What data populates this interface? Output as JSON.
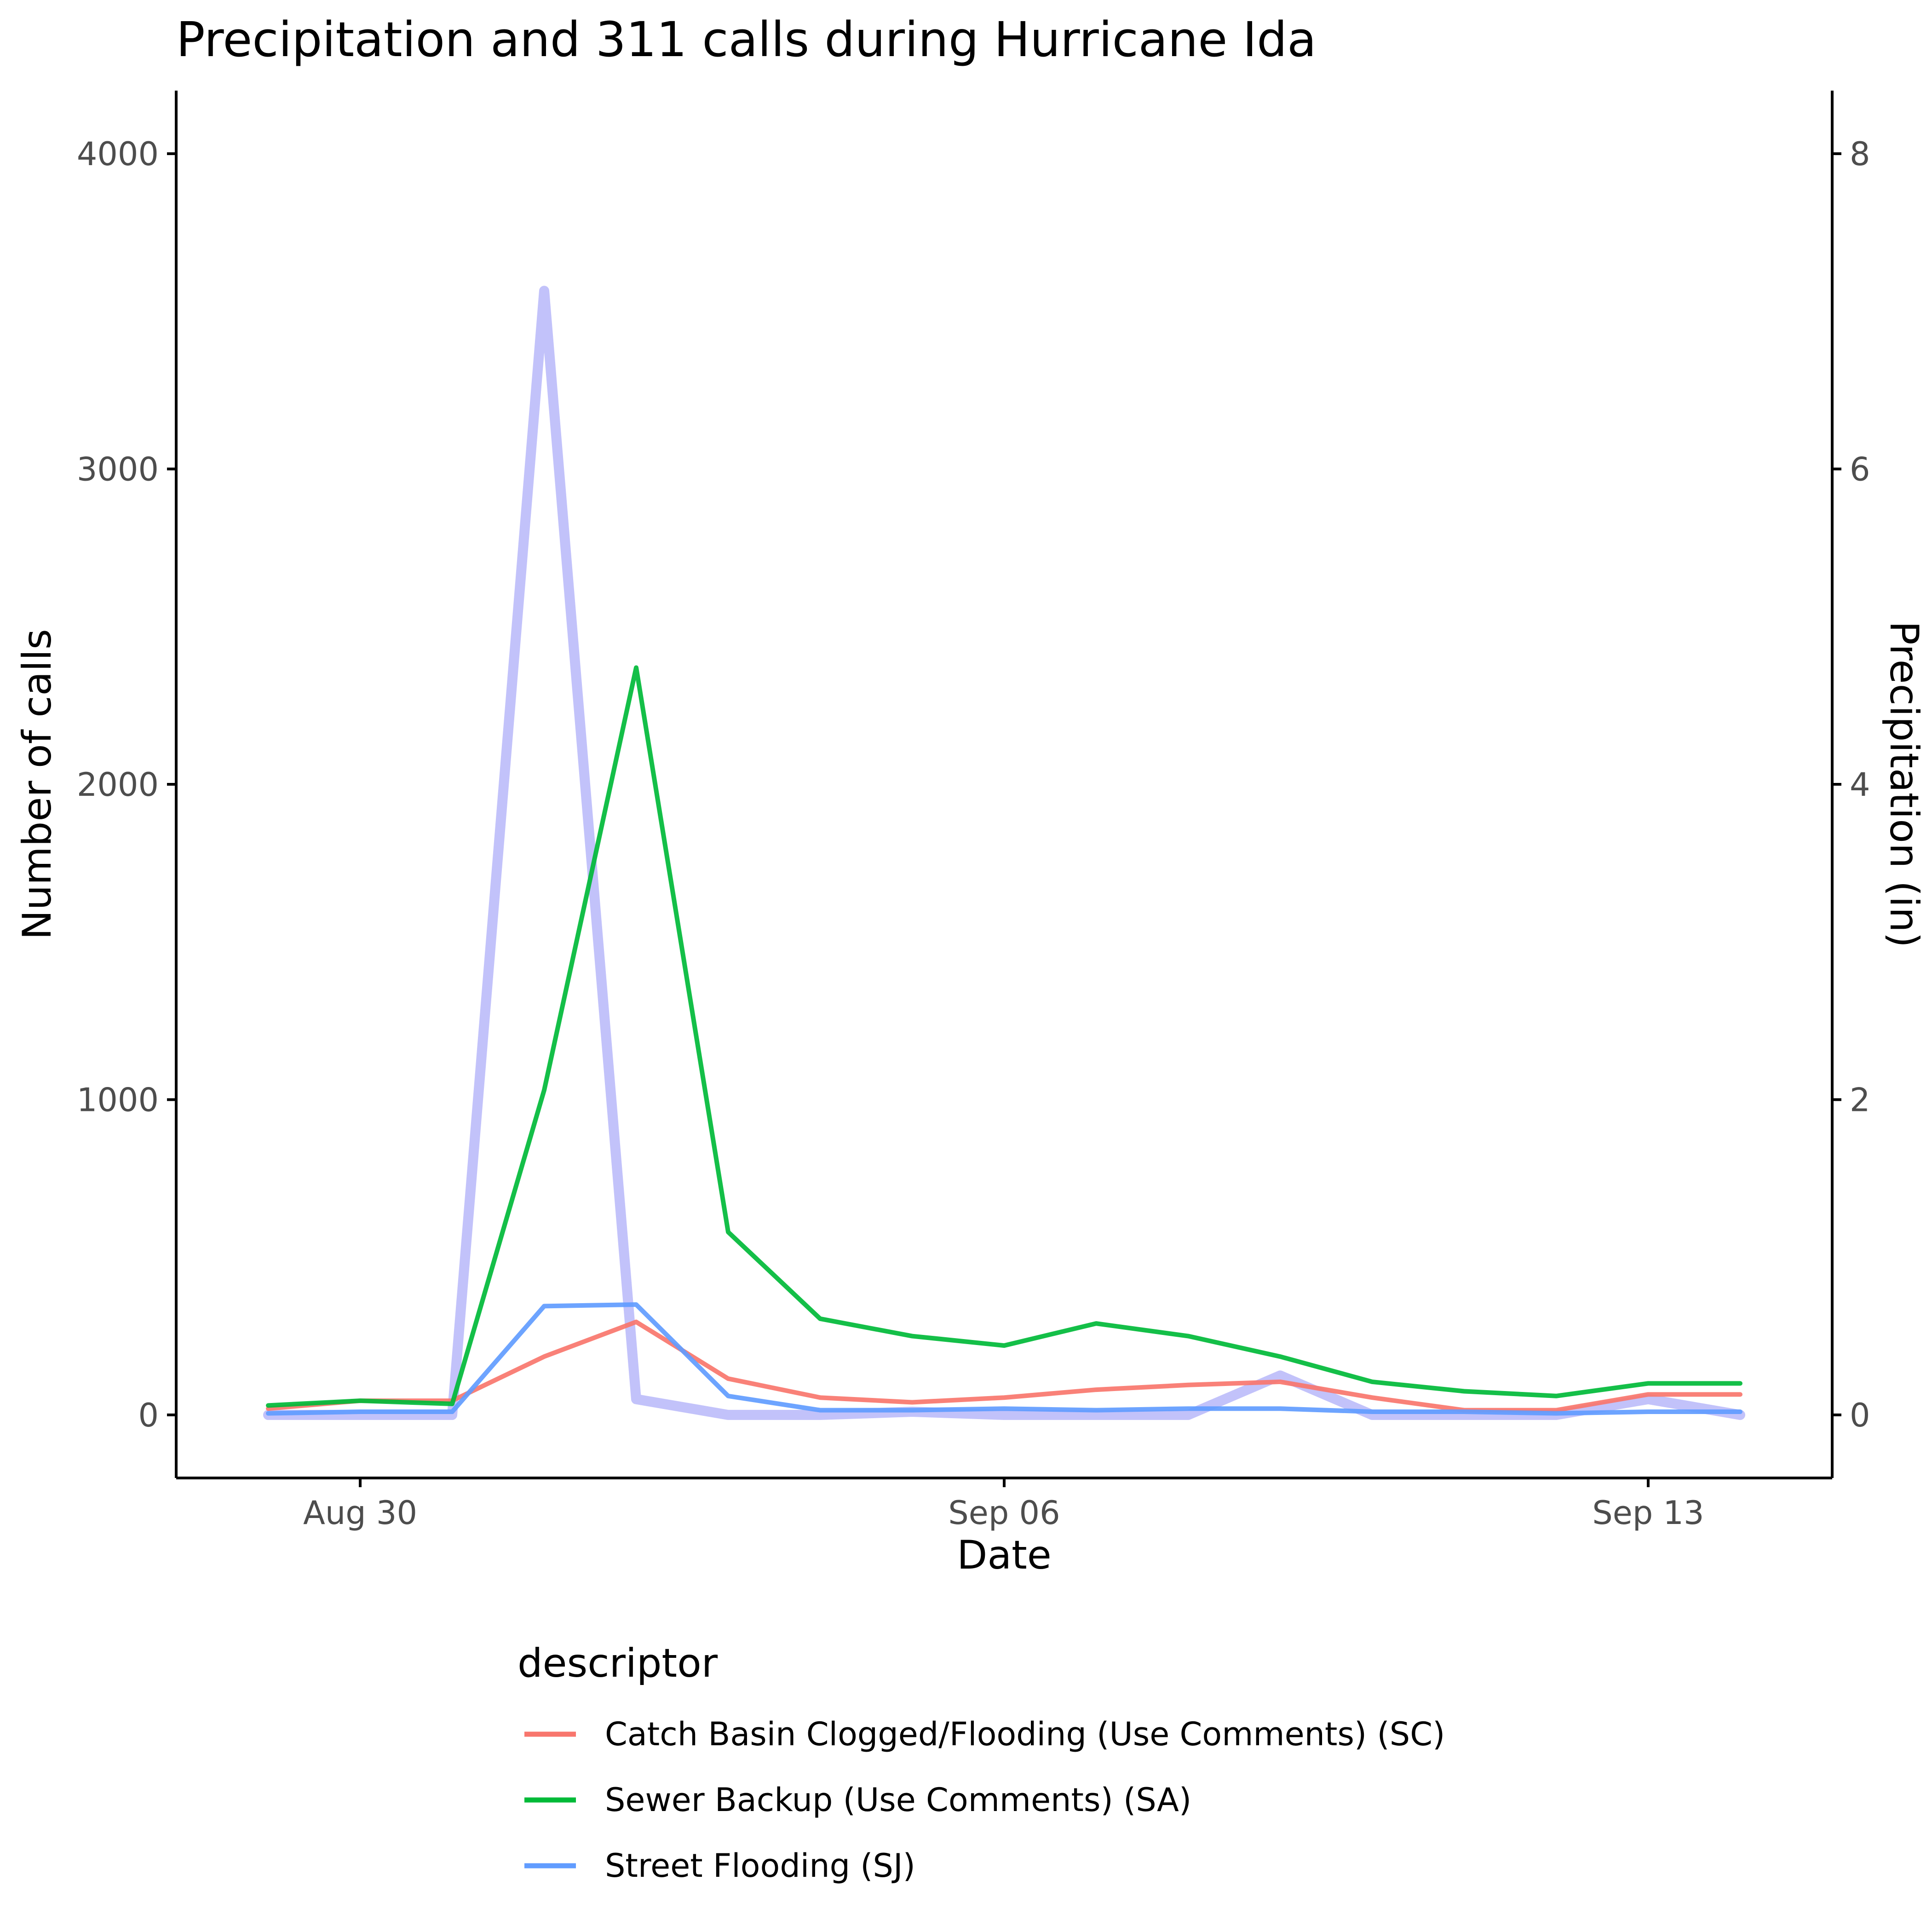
{
  "chart_data": {
    "type": "line",
    "title": "Precipitation and 311 calls during Hurricane Ida",
    "xlabel": "Date",
    "ylabel": "Number of calls",
    "y2label": "Precipitation (in)",
    "x": [
      "2021-08-29",
      "2021-08-30",
      "2021-08-31",
      "2021-09-01",
      "2021-09-02",
      "2021-09-03",
      "2021-09-04",
      "2021-09-05",
      "2021-09-06",
      "2021-09-07",
      "2021-09-08",
      "2021-09-09",
      "2021-09-10",
      "2021-09-11",
      "2021-09-12",
      "2021-09-13",
      "2021-09-14"
    ],
    "x_ticks": [
      {
        "date": "2021-08-30",
        "label": "Aug 30"
      },
      {
        "date": "2021-09-06",
        "label": "Sep 06"
      },
      {
        "date": "2021-09-13",
        "label": "Sep 13"
      }
    ],
    "xlim": [
      "2021-08-28",
      "2021-09-15"
    ],
    "ylim": [
      -200,
      4200
    ],
    "yticks": [
      0,
      1000,
      2000,
      3000,
      4000
    ],
    "y2lim": [
      -0.4,
      8.4
    ],
    "y2ticks": [
      0,
      2,
      4,
      6,
      8
    ],
    "series": [
      {
        "name": "Catch Basin Clogged/Flooding (Use Comments) (SC)",
        "color": "#F8766D",
        "axis": "left",
        "values": [
          20,
          45,
          45,
          185,
          295,
          115,
          55,
          40,
          55,
          80,
          95,
          105,
          55,
          15,
          15,
          65,
          65
        ]
      },
      {
        "name": "Sewer Backup (Use Comments) (SA)",
        "color": "#00BA38",
        "axis": "left",
        "values": [
          30,
          45,
          35,
          1030,
          2370,
          580,
          305,
          250,
          220,
          290,
          250,
          185,
          105,
          75,
          60,
          100,
          100
        ]
      },
      {
        "name": "Street Flooding (SJ)",
        "color": "#619CFF",
        "axis": "left",
        "values": [
          5,
          10,
          10,
          345,
          350,
          60,
          15,
          15,
          20,
          15,
          20,
          20,
          10,
          10,
          5,
          10,
          10
        ]
      },
      {
        "name": "",
        "color": "#C2C2FA",
        "axis": "right",
        "role": "precipitation",
        "values": [
          0,
          0,
          0,
          7.13,
          0.1,
          0,
          0,
          0.02,
          0,
          0,
          0,
          0.25,
          0,
          0,
          0,
          0.1,
          0
        ]
      }
    ],
    "legend": {
      "title": "descriptor",
      "position": "bottom",
      "entries": [
        {
          "label": "Catch Basin Clogged/Flooding (Use Comments) (SC)",
          "color": "#F8766D"
        },
        {
          "label": "Sewer Backup (Use Comments) (SA)",
          "color": "#00BA38"
        },
        {
          "label": "Street Flooding (SJ)",
          "color": "#619CFF"
        }
      ]
    },
    "grid": false
  }
}
